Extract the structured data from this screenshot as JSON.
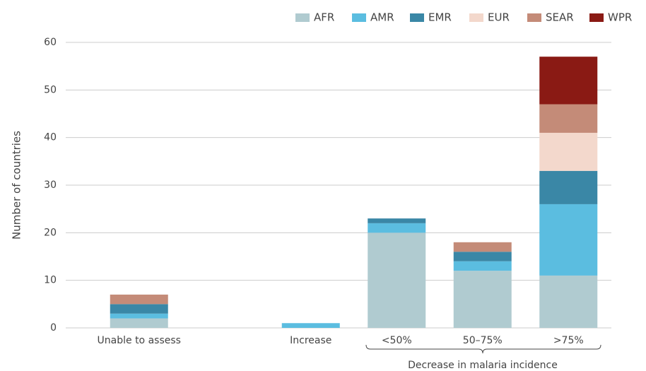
{
  "chart_data": {
    "type": "stacked_bar",
    "y_label": "Number of countries",
    "annotation": "Decrease in malaria incidence",
    "categories": [
      "Unable to assess",
      null,
      "Increase",
      "<50%",
      "50–75%",
      ">75%"
    ],
    "series": [
      {
        "name": "AFR",
        "color": "#b0cbd0",
        "values": [
          2,
          null,
          0,
          20,
          12,
          11
        ]
      },
      {
        "name": "AMR",
        "color": "#5bbde0",
        "values": [
          1,
          null,
          1,
          2,
          2,
          15
        ]
      },
      {
        "name": "EMR",
        "color": "#3a87a6",
        "values": [
          2,
          null,
          0,
          1,
          2,
          7
        ]
      },
      {
        "name": "EUR",
        "color": "#f3d8cc",
        "values": [
          0,
          null,
          0,
          0,
          0,
          8
        ]
      },
      {
        "name": "SEAR",
        "color": "#c48b78",
        "values": [
          2,
          null,
          0,
          0,
          2,
          6
        ]
      },
      {
        "name": "WPR",
        "color": "#8a1a14",
        "values": [
          0,
          null,
          0,
          0,
          0,
          10
        ]
      }
    ],
    "ylim": [
      0,
      60
    ],
    "yticks": [
      0,
      10,
      20,
      30,
      40,
      50,
      60
    ],
    "grid": true,
    "legend": "top-right"
  }
}
